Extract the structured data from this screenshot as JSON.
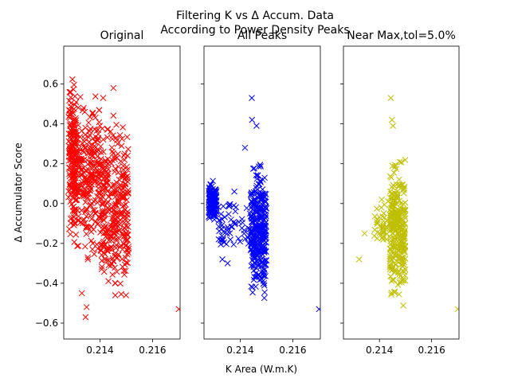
{
  "figure": {
    "title_line1": "Filtering K vs Δ Accum. Data",
    "title_line2": "According to Power Density Peaks",
    "xlabel": "K Area (W.m.K)",
    "ylabel": "Δ Accumulator Score"
  },
  "chart_data": [
    {
      "type": "scatter",
      "title": "Original",
      "marker": "x",
      "color": "#ff0000",
      "xlim": [
        0.21262,
        0.21705
      ],
      "ylim": [
        -0.68,
        0.79
      ],
      "xticks": [
        0.214,
        0.216
      ],
      "xtick_labels": [
        "0.214",
        "0.216"
      ],
      "yticks": [
        -0.6,
        -0.4,
        -0.2,
        0.0,
        0.2,
        0.4,
        0.6
      ],
      "ytick_labels": [
        "−0.6",
        "−0.4",
        "−0.2",
        "0.0",
        "0.2",
        "0.4",
        "0.6"
      ],
      "clusters": [
        {
          "x_range": [
            0.2128,
            0.2131
          ],
          "y_range": [
            -0.25,
            0.72
          ],
          "count": 170
        },
        {
          "x_range": [
            0.213,
            0.214
          ],
          "y_range": [
            -0.35,
            0.65
          ],
          "count": 260
        },
        {
          "x_range": [
            0.214,
            0.2151
          ],
          "y_range": [
            -0.62,
            0.52
          ],
          "count": 340
        }
      ],
      "outliers": [
        {
          "x": 0.21412,
          "y": 0.53
        },
        {
          "x": 0.21451,
          "y": 0.58
        },
        {
          "x": 0.21331,
          "y": -0.45
        },
        {
          "x": 0.21349,
          "y": -0.52
        },
        {
          "x": 0.21345,
          "y": -0.57
        },
        {
          "x": 0.217,
          "y": -0.53
        }
      ]
    },
    {
      "type": "scatter",
      "title": "All Peaks",
      "marker": "x",
      "color": "#0000ff",
      "xlim": [
        0.21262,
        0.21705
      ],
      "ylim": [
        -0.68,
        0.79
      ],
      "xticks": [
        0.214,
        0.216
      ],
      "xtick_labels": [
        "0.214",
        "0.216"
      ],
      "clusters": [
        {
          "x_range": [
            0.2128,
            0.2131
          ],
          "y_range": [
            -0.12,
            0.13
          ],
          "count": 140
        },
        {
          "x_range": [
            0.2131,
            0.2144
          ],
          "y_range": [
            -0.3,
            0.09
          ],
          "count": 60
        },
        {
          "x_range": [
            0.2144,
            0.215
          ],
          "y_range": [
            -0.57,
            0.3
          ],
          "count": 320
        }
      ],
      "outliers": [
        {
          "x": 0.21444,
          "y": 0.53
        },
        {
          "x": 0.21445,
          "y": 0.42
        },
        {
          "x": 0.21462,
          "y": 0.39
        },
        {
          "x": 0.21418,
          "y": 0.28
        },
        {
          "x": 0.21332,
          "y": -0.28
        },
        {
          "x": 0.21352,
          "y": -0.3
        },
        {
          "x": 0.217,
          "y": -0.53
        }
      ]
    },
    {
      "type": "scatter",
      "title": "Near Max,tol=5.0%",
      "marker": "x",
      "color": "#bfbf00",
      "xlim": [
        0.21262,
        0.21705
      ],
      "ylim": [
        -0.68,
        0.79
      ],
      "xticks": [
        0.214,
        0.216
      ],
      "xtick_labels": [
        "0.214",
        "0.216"
      ],
      "clusters": [
        {
          "x_range": [
            0.2138,
            0.2144
          ],
          "y_range": [
            -0.25,
            0.05
          ],
          "count": 40
        },
        {
          "x_range": [
            0.2144,
            0.215
          ],
          "y_range": [
            -0.57,
            0.3
          ],
          "count": 300
        }
      ],
      "outliers": [
        {
          "x": 0.21444,
          "y": 0.53
        },
        {
          "x": 0.21448,
          "y": 0.42
        },
        {
          "x": 0.21452,
          "y": 0.39
        },
        {
          "x": 0.21322,
          "y": -0.28
        },
        {
          "x": 0.21343,
          "y": -0.15
        },
        {
          "x": 0.217,
          "y": -0.53
        }
      ]
    }
  ]
}
